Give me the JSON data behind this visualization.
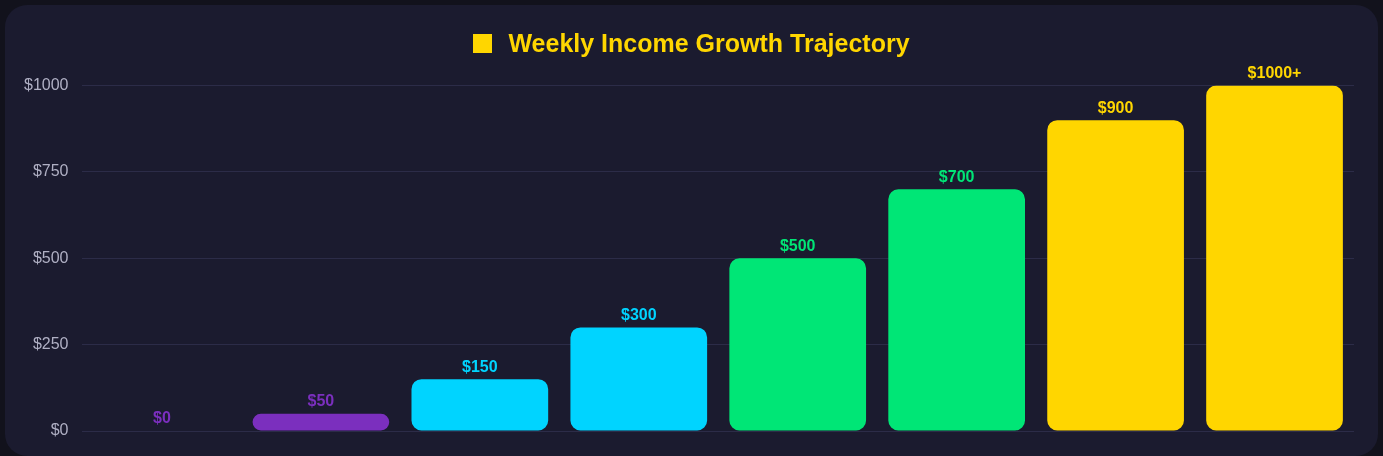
{
  "chart_data": {
    "type": "bar",
    "title": "Weekly Income Growth Trajectory",
    "categories": [
      null,
      null,
      null,
      null,
      null,
      null,
      null,
      null
    ],
    "values": [
      0,
      50,
      150,
      300,
      500,
      700,
      900,
      1000
    ],
    "colors": [
      "#7b2fbe",
      "#7b2fbe",
      "#00d4ff",
      "#00d4ff",
      "#00e676",
      "#00e676",
      "#ffd600",
      "#ffd600"
    ],
    "value_labels": [
      "$0",
      "$50",
      "$150",
      "$300",
      "$500",
      "$700",
      "$900",
      "$1000+"
    ],
    "ylim": [
      0,
      1000
    ],
    "yticks": [
      {
        "value": 0,
        "label": "$0"
      },
      {
        "value": 250,
        "label": "$250"
      },
      {
        "value": 500,
        "label": "$500"
      },
      {
        "value": 750,
        "label": "$750"
      },
      {
        "value": 1000,
        "label": "$1000"
      }
    ],
    "grid": "y",
    "legend": false
  }
}
